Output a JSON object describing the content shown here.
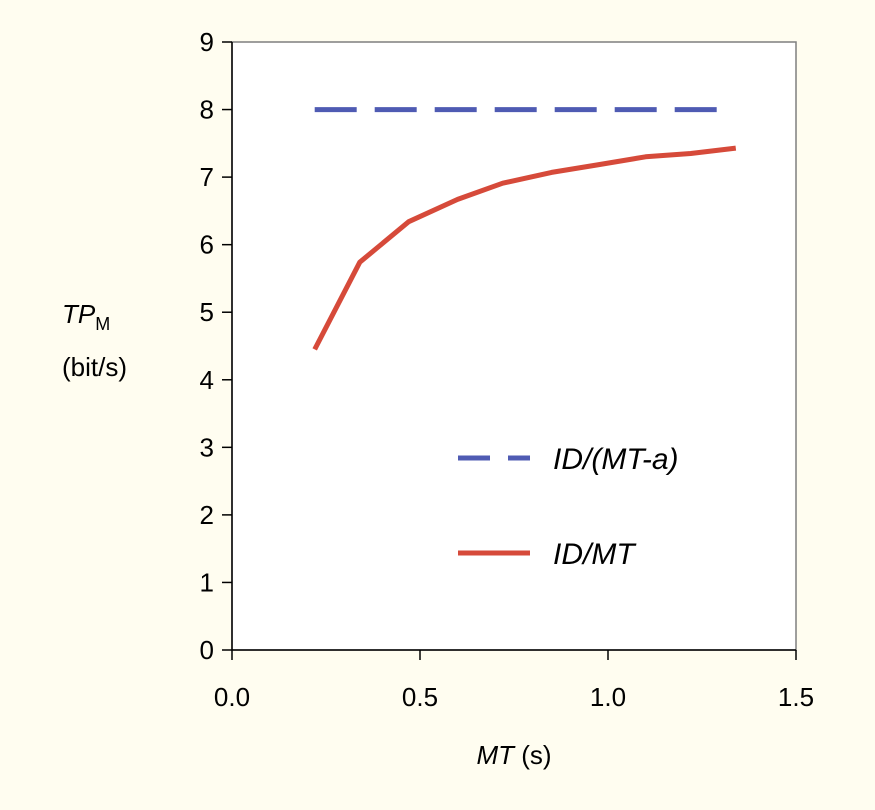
{
  "chart_data": {
    "type": "line",
    "ylabel_main": "TP",
    "ylabel_sub": "M",
    "ylabel_unit": "(bit/s)",
    "xlabel_italic": "MT",
    "xlabel_unit": " (s)",
    "xlim": [
      0,
      1.5
    ],
    "ylim": [
      0,
      9
    ],
    "x_ticks": [
      0.0,
      0.5,
      1.0,
      1.5
    ],
    "x_tick_labels": [
      "0.0",
      "0.5",
      "1.0",
      "1.5"
    ],
    "y_ticks": [
      0,
      1,
      2,
      3,
      4,
      5,
      6,
      7,
      8,
      9
    ],
    "y_tick_labels": [
      "0",
      "1",
      "2",
      "3",
      "4",
      "5",
      "6",
      "7",
      "8",
      "9"
    ],
    "grid": false,
    "legend_position": "center-right",
    "series": [
      {
        "name": "ID/(MT-a)",
        "color": "#4f5bb3",
        "style": "dashed",
        "x": [
          0.22,
          1.3
        ],
        "y": [
          8.0,
          8.0
        ]
      },
      {
        "name": "ID/MT",
        "color": "#d64a3a",
        "style": "solid",
        "x": [
          0.22,
          0.34,
          0.47,
          0.6,
          0.72,
          0.85,
          0.97,
          1.1,
          1.22,
          1.34
        ],
        "y": [
          4.45,
          5.74,
          6.34,
          6.67,
          6.91,
          7.07,
          7.18,
          7.3,
          7.35,
          7.43
        ]
      }
    ]
  }
}
